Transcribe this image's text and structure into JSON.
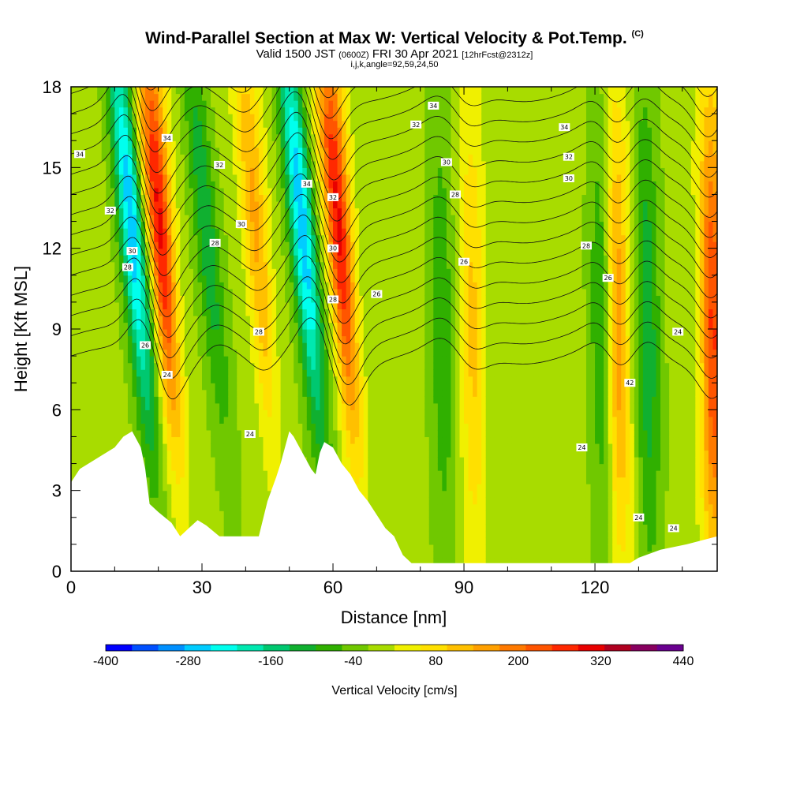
{
  "title": {
    "main": "Wind-Parallel Section at Max W: Vertical Velocity & Pot.Temp.",
    "copyright": "(C)",
    "valid_prefix": "Valid 1500 JST",
    "valid_zulu": "(0600Z)",
    "valid_date": "FRI 30 Apr 2021",
    "forecast": "[12hrFcst@2312z]",
    "params": "i,j,k,angle=92,59,24,50"
  },
  "chart_data": {
    "type": "heatmap",
    "xlabel": "Distance [nm]",
    "ylabel": "Height [Kft MSL]",
    "xlim": [
      0,
      148
    ],
    "ylim": [
      0,
      18
    ],
    "x_ticks": [
      "0",
      "30",
      "60",
      "90",
      "120"
    ],
    "x_tick_values": [
      0,
      30,
      60,
      90,
      120
    ],
    "y_ticks": [
      "0",
      "3",
      "6",
      "9",
      "12",
      "15",
      "18"
    ],
    "y_tick_values": [
      0,
      3,
      6,
      9,
      12,
      15,
      18
    ],
    "colorbar": {
      "label": "Vertical Velocity [cm/s]",
      "tick_labels": [
        "-400",
        "-280",
        "-160",
        "-40",
        "80",
        "200",
        "320",
        "440"
      ],
      "range": [
        -400,
        440
      ],
      "step": 40,
      "colors": [
        "#0000ff",
        "#0050ff",
        "#0090ff",
        "#00ccff",
        "#00ffee",
        "#00e8b0",
        "#00c870",
        "#10b030",
        "#30b000",
        "#70c800",
        "#a8dc00",
        "#f0f000",
        "#ffe000",
        "#ffc000",
        "#ffa000",
        "#ff7a00",
        "#ff5500",
        "#ff2800",
        "#e80000",
        "#b00020",
        "#880060",
        "#6a0090"
      ]
    },
    "theta_contour_labels": [
      "24",
      "26",
      "28",
      "30",
      "32",
      "34",
      "42"
    ],
    "w_features": [
      {
        "x": 22,
        "w": 320,
        "kind": "updraft"
      },
      {
        "x": 16,
        "w": -280,
        "kind": "downdraft"
      },
      {
        "x": 44,
        "w": 160,
        "kind": "updraft"
      },
      {
        "x": 55,
        "w": -280,
        "kind": "downdraft"
      },
      {
        "x": 63,
        "w": 320,
        "kind": "updraft"
      },
      {
        "x": 92,
        "w": 120,
        "kind": "updraft"
      },
      {
        "x": 125,
        "w": 200,
        "kind": "updraft"
      },
      {
        "x": 147,
        "w": 280,
        "kind": "updraft"
      },
      {
        "x": 33,
        "w": -120,
        "kind": "downdraft"
      },
      {
        "x": 85,
        "w": -80,
        "kind": "downdraft"
      },
      {
        "x": 122,
        "w": -120,
        "kind": "downdraft"
      },
      {
        "x": 132,
        "w": -120,
        "kind": "downdraft"
      }
    ],
    "terrain": [
      [
        0,
        3.3
      ],
      [
        2,
        3.8
      ],
      [
        6,
        4.2
      ],
      [
        10,
        4.6
      ],
      [
        12,
        5.0
      ],
      [
        14,
        5.2
      ],
      [
        16,
        4.6
      ],
      [
        17,
        3.8
      ],
      [
        18,
        2.5
      ],
      [
        20,
        2.2
      ],
      [
        23,
        1.8
      ],
      [
        25,
        1.3
      ],
      [
        27,
        1.6
      ],
      [
        29,
        1.9
      ],
      [
        31,
        1.7
      ],
      [
        34,
        1.3
      ],
      [
        38,
        1.3
      ],
      [
        43,
        1.3
      ],
      [
        45,
        2.6
      ],
      [
        47,
        3.5
      ],
      [
        48,
        4.0
      ],
      [
        50,
        5.2
      ],
      [
        51,
        5.0
      ],
      [
        53,
        4.4
      ],
      [
        55,
        3.8
      ],
      [
        56,
        3.6
      ],
      [
        57,
        4.4
      ],
      [
        58,
        4.8
      ],
      [
        60,
        4.6
      ],
      [
        62,
        4.0
      ],
      [
        64,
        3.6
      ],
      [
        66,
        3.0
      ],
      [
        68,
        2.6
      ],
      [
        70,
        2.1
      ],
      [
        72,
        1.6
      ],
      [
        74,
        1.3
      ],
      [
        76,
        0.6
      ],
      [
        78,
        0.3
      ],
      [
        90,
        0.3
      ],
      [
        110,
        0.3
      ],
      [
        128,
        0.3
      ],
      [
        130,
        0.5
      ],
      [
        135,
        0.8
      ],
      [
        141,
        1.0
      ],
      [
        148,
        1.3
      ]
    ]
  }
}
